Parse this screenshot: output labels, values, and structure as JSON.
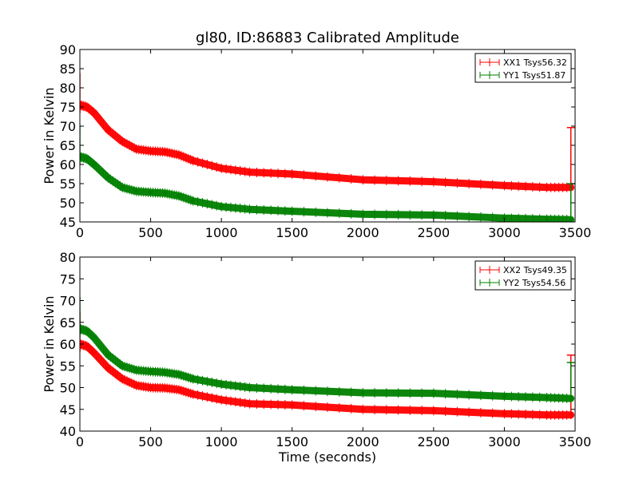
{
  "chart_data": [
    {
      "type": "line",
      "title": "gl80, ID:86883 Calibrated Amplitude",
      "xlabel": "",
      "ylabel": "Power in Kelvin",
      "xlim": [
        0,
        3500
      ],
      "ylim": [
        45,
        90
      ],
      "xticks": [
        "0",
        "500",
        "1000",
        "1500",
        "2000",
        "2500",
        "3000",
        "3500"
      ],
      "yticks": [
        "45",
        "50",
        "55",
        "60",
        "65",
        "70",
        "75",
        "80",
        "85",
        "90"
      ],
      "grid": false,
      "legend_position": "top-right",
      "series": [
        {
          "name": "XX1 Tsys56.32",
          "color": "#ff0000",
          "x": [
            0,
            50,
            100,
            200,
            300,
            400,
            500,
            600,
            700,
            800,
            1000,
            1200,
            1500,
            2000,
            2500,
            3000,
            3300,
            3470
          ],
          "y": [
            75.5,
            75.0,
            73.5,
            69.0,
            66.0,
            64.0,
            63.5,
            63.3,
            62.5,
            61.0,
            59.0,
            58.0,
            57.5,
            56.0,
            55.5,
            54.5,
            54.0,
            54.0
          ]
        },
        {
          "name": "YY1 Tsys51.87",
          "color": "#008000",
          "x": [
            0,
            50,
            100,
            200,
            300,
            400,
            500,
            600,
            700,
            800,
            1000,
            1200,
            1500,
            2000,
            2500,
            3000,
            3300,
            3470
          ],
          "y": [
            62.0,
            61.5,
            60.0,
            56.5,
            54.0,
            53.0,
            52.7,
            52.5,
            51.8,
            50.5,
            49.0,
            48.3,
            47.8,
            47.0,
            46.8,
            46.0,
            45.7,
            45.6
          ]
        }
      ]
    },
    {
      "type": "line",
      "title": "",
      "xlabel": "Time (seconds)",
      "ylabel": "Power in Kelvin",
      "xlim": [
        0,
        3500
      ],
      "ylim": [
        40,
        80
      ],
      "xticks": [
        "0",
        "500",
        "1000",
        "1500",
        "2000",
        "2500",
        "3000",
        "3500"
      ],
      "yticks": [
        "40",
        "45",
        "50",
        "55",
        "60",
        "65",
        "70",
        "75",
        "80"
      ],
      "grid": false,
      "legend_position": "top-right",
      "series": [
        {
          "name": "XX2 Tsys49.35",
          "color": "#ff0000",
          "x": [
            0,
            50,
            100,
            200,
            300,
            400,
            500,
            600,
            700,
            800,
            1000,
            1200,
            1500,
            2000,
            2500,
            3000,
            3300,
            3470
          ],
          "y": [
            60.0,
            59.5,
            58.0,
            54.5,
            52.0,
            50.5,
            50.0,
            49.9,
            49.5,
            48.5,
            47.2,
            46.3,
            46.0,
            45.0,
            44.7,
            44.0,
            43.7,
            43.7
          ]
        },
        {
          "name": "YY2 Tsys54.56",
          "color": "#008000",
          "x": [
            0,
            50,
            100,
            200,
            300,
            400,
            500,
            600,
            700,
            800,
            1000,
            1200,
            1500,
            2000,
            2500,
            3000,
            3300,
            3470
          ],
          "y": [
            63.5,
            63.0,
            61.5,
            57.5,
            55.0,
            54.0,
            53.7,
            53.5,
            53.0,
            52.0,
            50.8,
            50.0,
            49.5,
            48.8,
            48.7,
            48.0,
            47.7,
            47.5
          ]
        }
      ]
    }
  ]
}
